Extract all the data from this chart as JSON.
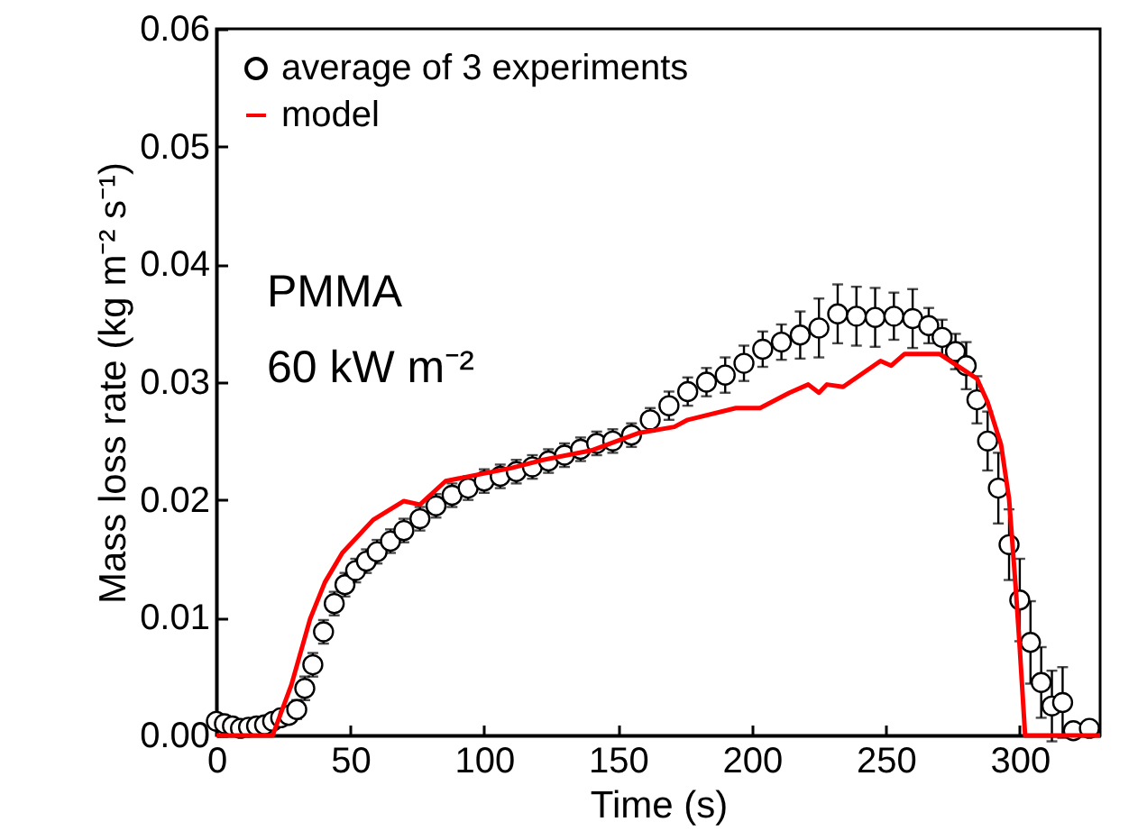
{
  "chart_data": {
    "type": "scatter",
    "xlabel": "Time (s)",
    "ylabel": "Mass loss rate (kg m⁻² s⁻¹)",
    "annotations": [
      "PMMA",
      "60 kW m⁻²"
    ],
    "xlim": [
      0,
      330
    ],
    "xticks": [
      0,
      50,
      100,
      150,
      200,
      250,
      300
    ],
    "ylim": [
      0,
      0.06
    ],
    "yticks": [
      {
        "value": 0,
        "label": "0.00"
      },
      {
        "value": 0.01,
        "label": "0.01"
      },
      {
        "value": 0.02,
        "label": "0.02"
      },
      {
        "value": 0.03,
        "label": "0.03"
      },
      {
        "value": 0.04,
        "label": "0.04"
      },
      {
        "value": 0.05,
        "label": "0.05"
      },
      {
        "value": 0.06,
        "label": "0.06"
      }
    ],
    "grid": false,
    "legend": "top left",
    "series": [
      {
        "name": "average of 3 experiments",
        "marker": "circle",
        "color": "#000000",
        "x": [
          0,
          3,
          6,
          9,
          12,
          15,
          18,
          21,
          24,
          27,
          30,
          33,
          36,
          40,
          44,
          48,
          52,
          56,
          60,
          65,
          70,
          76,
          82,
          88,
          94,
          100,
          106,
          112,
          118,
          124,
          130,
          136,
          142,
          148,
          155,
          162,
          169,
          176,
          183,
          190,
          197,
          204,
          211,
          218,
          225,
          232,
          239,
          246,
          253,
          260,
          266,
          271,
          276,
          280,
          284,
          288,
          292,
          296,
          300,
          304,
          308,
          312,
          316,
          320,
          326
        ],
        "values": [
          0.0012,
          0.001,
          0.0008,
          0.0006,
          0.0007,
          0.0008,
          0.0009,
          0.0012,
          0.0015,
          0.0017,
          0.0022,
          0.004,
          0.006,
          0.0088,
          0.0112,
          0.0128,
          0.014,
          0.0148,
          0.0156,
          0.0165,
          0.0174,
          0.0184,
          0.0195,
          0.0204,
          0.021,
          0.0216,
          0.022,
          0.0224,
          0.0228,
          0.0233,
          0.0238,
          0.0243,
          0.0248,
          0.025,
          0.0255,
          0.0268,
          0.028,
          0.0292,
          0.03,
          0.0306,
          0.0316,
          0.0328,
          0.0334,
          0.034,
          0.0346,
          0.0358,
          0.0356,
          0.0355,
          0.0356,
          0.0354,
          0.0348,
          0.0338,
          0.0326,
          0.0314,
          0.0285,
          0.025,
          0.021,
          0.0162,
          0.0115,
          0.0079,
          0.0045,
          0.0025,
          0.0028,
          0.0004,
          0.0006
        ],
        "errors": [
          0.0005,
          0.0005,
          0.0005,
          0.0005,
          0.0005,
          0.0005,
          0.0005,
          0.0005,
          0.0005,
          0.0005,
          0.0008,
          0.001,
          0.001,
          0.001,
          0.001,
          0.001,
          0.001,
          0.001,
          0.001,
          0.001,
          0.001,
          0.001,
          0.001,
          0.001,
          0.001,
          0.001,
          0.001,
          0.001,
          0.001,
          0.001,
          0.001,
          0.001,
          0.001,
          0.001,
          0.001,
          0.001,
          0.0012,
          0.0012,
          0.0012,
          0.0015,
          0.0015,
          0.0015,
          0.0015,
          0.002,
          0.0025,
          0.0025,
          0.0025,
          0.0025,
          0.002,
          0.0025,
          0.0015,
          0.0015,
          0.0015,
          0.002,
          0.002,
          0.0025,
          0.003,
          0.003,
          0.0035,
          0.0035,
          0.003,
          0.003,
          0.003,
          0.0005,
          0.0005
        ]
      },
      {
        "name": "model",
        "type": "line",
        "line_style": "solid",
        "color": "#ff0000",
        "x": [
          0,
          21,
          28,
          35,
          40.5,
          47,
          58.5,
          70,
          76,
          85.6,
          110,
          122,
          140,
          158,
          171,
          176,
          194,
          203,
          214,
          221,
          225,
          228,
          234,
          248,
          252,
          257,
          263.5,
          270,
          284,
          288,
          293,
          296,
          298.5,
          300,
          302,
          330
        ],
        "values": [
          0,
          0,
          0.0043,
          0.0099,
          0.013,
          0.0155,
          0.0183,
          0.0199,
          0.0196,
          0.0216,
          0.0227,
          0.0234,
          0.0242,
          0.0257,
          0.0262,
          0.0268,
          0.0278,
          0.0278,
          0.0291,
          0.0298,
          0.0291,
          0.0298,
          0.0296,
          0.0318,
          0.0314,
          0.0324,
          0.0324,
          0.0324,
          0.0303,
          0.0283,
          0.0247,
          0.0201,
          0.0125,
          0.0074,
          0,
          0
        ]
      }
    ]
  }
}
